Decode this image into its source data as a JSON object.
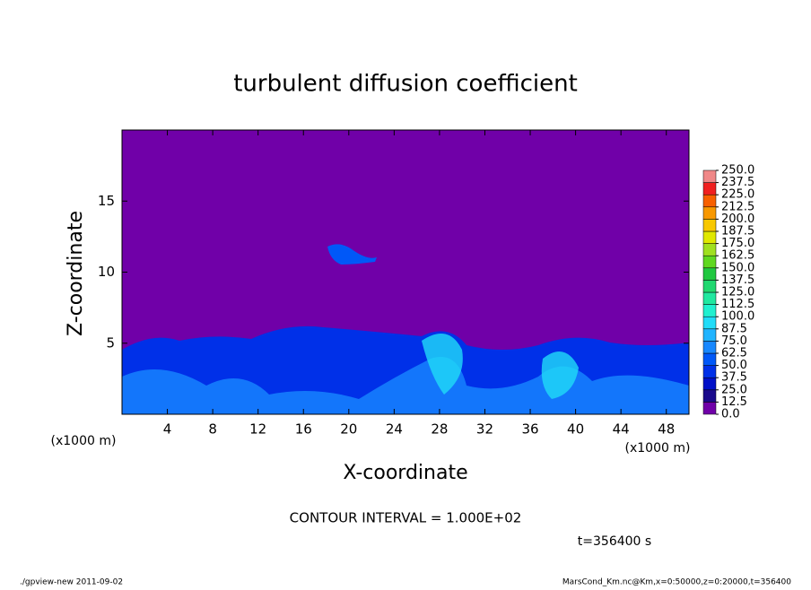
{
  "chart_data": {
    "type": "heatmap",
    "title": "turbulent diffusion coefficient",
    "xlabel": "X-coordinate",
    "ylabel": "Z-coordinate",
    "xunit": "(x1000 m)",
    "yunit": "(x1000 m)",
    "xlim": [
      0,
      50
    ],
    "xticks": [
      4,
      8,
      12,
      16,
      20,
      24,
      28,
      32,
      36,
      40,
      44,
      48
    ],
    "ylim": [
      0,
      20
    ],
    "yticks": [
      5,
      10,
      15
    ],
    "colorbar": {
      "levels": [
        {
          "value": 0,
          "label": "0.0"
        },
        12.5,
        {
          "value": 25,
          "label": "25.0"
        },
        37.5,
        {
          "value": 50,
          "label": "50.0"
        },
        62.5,
        {
          "value": 75,
          "label": "75.0"
        },
        87.5,
        {
          "value": 100,
          "label": "100.0"
        },
        112.5,
        {
          "value": 125,
          "label": "125.0"
        },
        137.5,
        {
          "value": 150,
          "label": "150.0"
        },
        162.5,
        {
          "value": 175,
          "label": "175.0"
        },
        187.5,
        {
          "value": 200,
          "label": "200.0"
        },
        212.5,
        {
          "value": 225,
          "label": "225.0"
        },
        237.5,
        {
          "value": 250,
          "label": "250.0"
        }
      ],
      "colors": [
        "#7000a8",
        "#1a0a8c",
        "#0010c8",
        "#0030e8",
        "#0058f8",
        "#1888ff",
        "#20b4ff",
        "#20dcf8",
        "#20f0d0",
        "#20e8a0",
        "#20d870",
        "#20c840",
        "#60d820",
        "#a0e020",
        "#e0e800",
        "#f8c800",
        "#f89800",
        "#f86000",
        "#f02020",
        "#f08888"
      ]
    },
    "annotation": "CONTOUR INTERVAL = 1.000E+02",
    "time_label": "t=356400 s",
    "footer_left": "./gpview-new  2011-09-02",
    "footer_right": "MarsCond_Km.nc@Km,x=0:50000,z=0:20000,t=356400"
  }
}
